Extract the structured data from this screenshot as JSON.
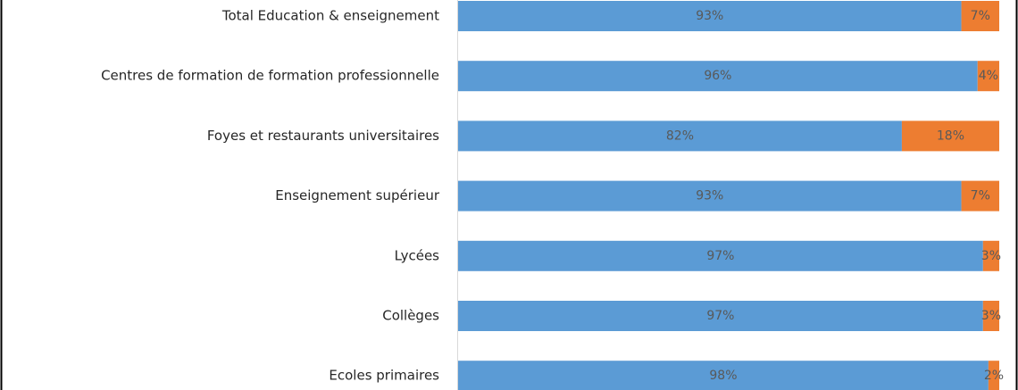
{
  "chart_data": {
    "type": "bar",
    "orientation": "horizontal",
    "stacked": true,
    "categories": [
      "Total Education & enseignement",
      "Centres de formation de formation professionnelle",
      "Foyes et restaurants universitaires",
      "Enseignement supérieur",
      "Lycées",
      "Collèges",
      "Ecoles primaires"
    ],
    "series": [
      {
        "color": "#5b9bd5",
        "values": [
          93,
          96,
          82,
          93,
          97,
          97,
          98
        ],
        "value_labels": [
          "93%",
          "96%",
          "82%",
          "93%",
          "97%",
          "97%",
          "98%"
        ]
      },
      {
        "color": "#ed7d31",
        "values": [
          7,
          4,
          18,
          7,
          3,
          3,
          2
        ],
        "value_labels": [
          "7%",
          "4%",
          "18%",
          "7%",
          "3%",
          "3%",
          "2%"
        ]
      }
    ]
  }
}
